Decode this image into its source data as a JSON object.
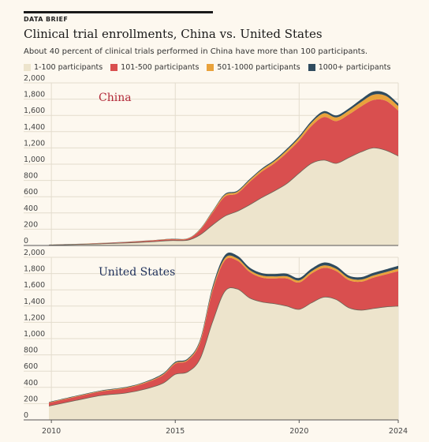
{
  "header": {
    "kicker": "DATA BRIEF",
    "title": "Clinical trial enrollments, China vs. United States",
    "subtitle": "About 40 percent of clinical trials performed in China have more than 100 participants."
  },
  "legend": [
    {
      "label": "1-100 participants",
      "color": "#ede4cc"
    },
    {
      "label": "101-500 participants",
      "color": "#d94f4f"
    },
    {
      "label": "501-1000 participants",
      "color": "#e9a23b"
    },
    {
      "label": "1000+ participants",
      "color": "#2f4b5e"
    }
  ],
  "chart_data": [
    {
      "type": "area",
      "stacked": true,
      "panel_label": "China",
      "panel_label_color": "#b32a3a",
      "x": [
        2009.9,
        2011,
        2012,
        2013,
        2014,
        2014.8,
        2015.5,
        2016,
        2016.5,
        2017,
        2017.5,
        2018,
        2018.5,
        2019,
        2019.5,
        2020,
        2020.5,
        2021,
        2021.5,
        2022,
        2022.5,
        2023,
        2023.5,
        2024
      ],
      "series": [
        {
          "name": "1-100 participants",
          "values": [
            5,
            12,
            20,
            30,
            45,
            60,
            65,
            130,
            250,
            360,
            420,
            500,
            590,
            670,
            760,
            890,
            1010,
            1050,
            1010,
            1080,
            1150,
            1200,
            1170,
            1100
          ]
        },
        {
          "name": "101-500 participants",
          "values": [
            3,
            5,
            8,
            10,
            14,
            16,
            17,
            60,
            150,
            240,
            220,
            280,
            320,
            340,
            380,
            400,
            460,
            530,
            520,
            530,
            560,
            590,
            610,
            560
          ]
        },
        {
          "name": "501-1000 participants",
          "values": [
            1,
            1,
            2,
            3,
            3,
            4,
            4,
            8,
            13,
            20,
            20,
            22,
            24,
            26,
            30,
            34,
            40,
            46,
            45,
            48,
            55,
            65,
            60,
            55
          ]
        },
        {
          "name": "1000+ participants",
          "values": [
            1,
            1,
            1,
            2,
            2,
            3,
            3,
            5,
            8,
            12,
            12,
            13,
            14,
            16,
            18,
            20,
            22,
            26,
            25,
            27,
            32,
            38,
            34,
            30
          ]
        }
      ],
      "ylim": [
        0,
        2000
      ],
      "yticks": [
        0,
        200,
        400,
        600,
        800,
        1000,
        1200,
        1400,
        1600,
        1800,
        2000
      ],
      "ytick_labels": [
        "0",
        "200",
        "400",
        "600",
        "800",
        "1,000",
        "1,200",
        "1,400",
        "1,600",
        "1,800",
        "2,000"
      ]
    },
    {
      "type": "area",
      "stacked": true,
      "panel_label": "United States",
      "panel_label_color": "#1d2f5a",
      "x": [
        2009.9,
        2011,
        2012,
        2013,
        2013.8,
        2014.5,
        2015,
        2015.5,
        2016,
        2016.5,
        2017,
        2017.5,
        2018,
        2018.5,
        2019,
        2019.5,
        2020,
        2020.5,
        2021,
        2021.5,
        2022,
        2022.5,
        2023,
        2023.5,
        2024
      ],
      "series": [
        {
          "name": "1-100 participants",
          "values": [
            170,
            240,
            300,
            330,
            380,
            450,
            560,
            590,
            750,
            1200,
            1580,
            1610,
            1500,
            1450,
            1430,
            1400,
            1360,
            1440,
            1510,
            1480,
            1380,
            1350,
            1370,
            1390,
            1400
          ]
        },
        {
          "name": "101-500 participants",
          "values": [
            40,
            45,
            50,
            60,
            75,
            100,
            130,
            140,
            200,
            380,
            380,
            350,
            320,
            300,
            310,
            340,
            330,
            360,
            360,
            350,
            340,
            350,
            380,
            400,
            430
          ]
        },
        {
          "name": "501-1000 participants",
          "values": [
            5,
            6,
            6,
            7,
            8,
            10,
            12,
            12,
            18,
            25,
            28,
            27,
            25,
            25,
            25,
            27,
            26,
            28,
            30,
            28,
            26,
            26,
            27,
            28,
            30
          ]
        },
        {
          "name": "1000+ participants",
          "values": [
            5,
            6,
            6,
            7,
            8,
            10,
            12,
            12,
            18,
            30,
            36,
            34,
            30,
            30,
            30,
            32,
            30,
            32,
            36,
            34,
            30,
            30,
            32,
            34,
            36
          ]
        }
      ],
      "ylim": [
        0,
        2000
      ],
      "yticks": [
        0,
        200,
        400,
        600,
        800,
        1000,
        1200,
        1400,
        1600,
        1800,
        2000
      ],
      "ytick_labels": [
        "0",
        "200",
        "400",
        "600",
        "800",
        "1,000",
        "1,200",
        "1,400",
        "1,600",
        "1,800",
        "2,000"
      ]
    }
  ],
  "xaxis": {
    "ticks": [
      2010,
      2015,
      2020,
      2024
    ],
    "tick_labels": [
      "2010",
      "2015",
      "2020",
      "2024"
    ],
    "range": [
      2009.9,
      2024
    ]
  },
  "grid": true
}
